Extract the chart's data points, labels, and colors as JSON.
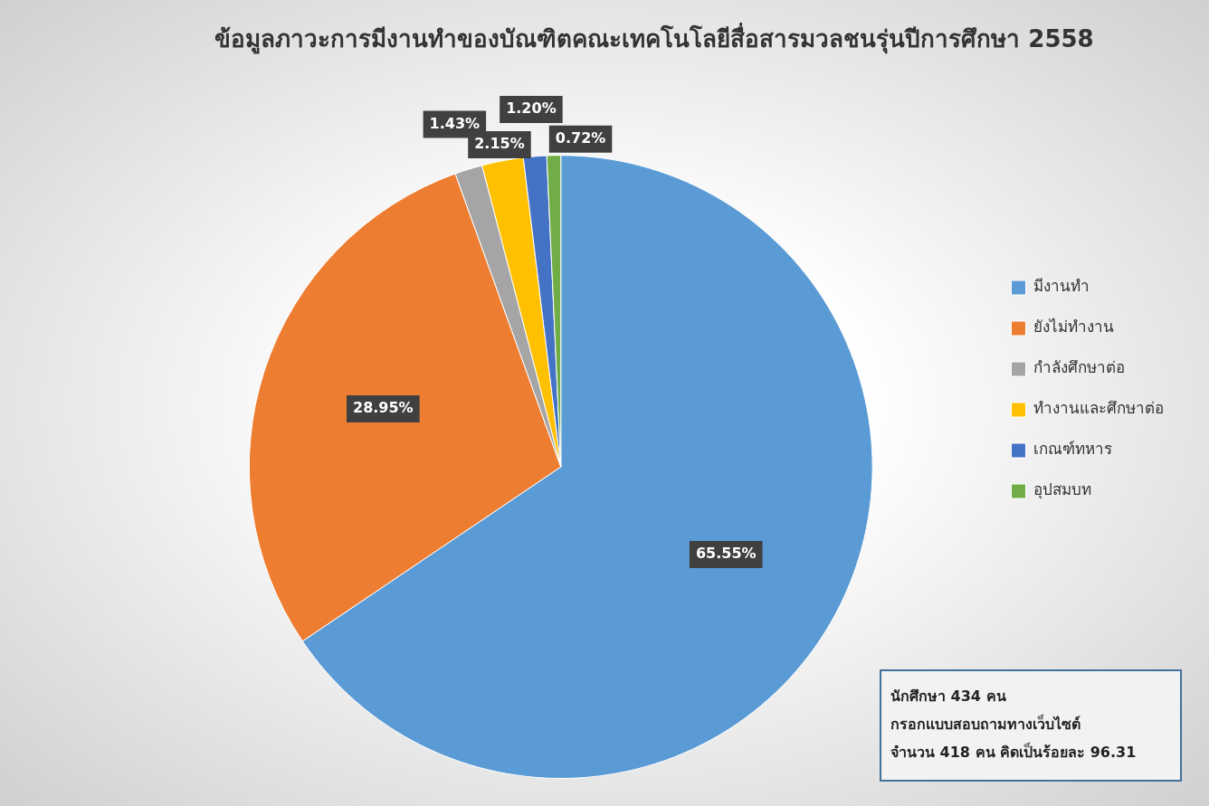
{
  "chart_data": {
    "type": "pie",
    "title": "ข้อมูลภาวะการมีงานทำของบัณฑิตคณะเทคโนโลยีสื่อสารมวลชนรุ่นปีการศึกษา 2558",
    "categories": [
      "มีงานทำ",
      "ยังไม่ทำงาน",
      "กำลังศึกษาต่อ",
      "ทำงานและศึกษาต่อ",
      "เกณฑ์ทหาร",
      "อุปสมบท"
    ],
    "values": [
      65.55,
      28.95,
      1.43,
      2.15,
      1.2,
      0.72
    ],
    "colors": [
      "#5b9bd5",
      "#ed7d31",
      "#a5a5a5",
      "#ffc000",
      "#4472c4",
      "#70ad47"
    ],
    "value_labels": [
      "65.55%",
      "28.95%",
      "1.43%",
      "2.15%",
      "1.20%",
      "0.72%"
    ],
    "legend": "right",
    "annotations": [
      "นักศึกษา 434 คน",
      "กรอกแบบสอบถามทางเว็บไซต์",
      "จำนวน 418 คน คิดเป็นร้อยละ 96.31"
    ]
  }
}
